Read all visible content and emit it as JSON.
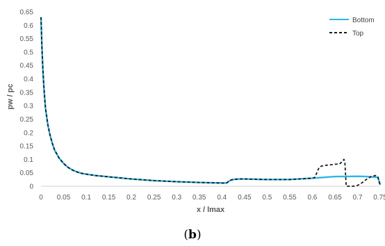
{
  "chart_data": {
    "type": "line",
    "xlabel": "x / lmax",
    "ylabel": "pw / pc",
    "xlim": [
      0,
      0.75
    ],
    "ylim": [
      0,
      0.65
    ],
    "x_ticks": [
      "0",
      "0.05",
      "0.1",
      "0.15",
      "0.2",
      "0.25",
      "0.3",
      "0.35",
      "0.4",
      "0.45",
      "0.5",
      "0.55",
      "0.6",
      "0.65",
      "0.7",
      "0.75"
    ],
    "y_ticks": [
      "0",
      "0.05",
      "0.1",
      "0.15",
      "0.2",
      "0.25",
      "0.3",
      "0.35",
      "0.4",
      "0.45",
      "0.5",
      "0.55",
      "0.6",
      "0.65"
    ],
    "grid": false,
    "legend_position": "top-right",
    "caption_open": "(",
    "caption_label": "b",
    "caption_close": ")",
    "series": [
      {
        "name": "Bottom",
        "color": "#2EB4E6",
        "style": "solid",
        "x": [
          0.0,
          0.002,
          0.004,
          0.006,
          0.008,
          0.01,
          0.015,
          0.02,
          0.025,
          0.03,
          0.04,
          0.05,
          0.06,
          0.07,
          0.08,
          0.09,
          0.1,
          0.12,
          0.15,
          0.2,
          0.25,
          0.3,
          0.35,
          0.4,
          0.41,
          0.415,
          0.42,
          0.425,
          0.43,
          0.44,
          0.45,
          0.5,
          0.55,
          0.6,
          0.65,
          0.7,
          0.72,
          0.74,
          0.745,
          0.75
        ],
        "y": [
          0.63,
          0.52,
          0.44,
          0.38,
          0.33,
          0.29,
          0.23,
          0.19,
          0.16,
          0.135,
          0.105,
          0.085,
          0.07,
          0.06,
          0.053,
          0.048,
          0.045,
          0.04,
          0.035,
          0.027,
          0.021,
          0.017,
          0.014,
          0.012,
          0.012,
          0.018,
          0.023,
          0.025,
          0.026,
          0.027,
          0.027,
          0.025,
          0.025,
          0.03,
          0.036,
          0.037,
          0.036,
          0.034,
          0.033,
          0.005
        ]
      },
      {
        "name": "Top",
        "color": "#1a1a1a",
        "style": "dashed",
        "x": [
          0.0,
          0.002,
          0.004,
          0.006,
          0.008,
          0.01,
          0.015,
          0.02,
          0.025,
          0.03,
          0.04,
          0.05,
          0.06,
          0.07,
          0.08,
          0.09,
          0.1,
          0.12,
          0.15,
          0.2,
          0.25,
          0.3,
          0.35,
          0.4,
          0.41,
          0.415,
          0.42,
          0.425,
          0.43,
          0.44,
          0.45,
          0.5,
          0.55,
          0.6,
          0.605,
          0.61,
          0.615,
          0.62,
          0.63,
          0.64,
          0.65,
          0.66,
          0.665,
          0.67,
          0.672,
          0.675,
          0.68,
          0.685,
          0.69,
          0.7,
          0.71,
          0.72,
          0.73,
          0.74,
          0.745,
          0.75
        ],
        "y": [
          0.63,
          0.52,
          0.44,
          0.38,
          0.33,
          0.29,
          0.23,
          0.19,
          0.16,
          0.135,
          0.105,
          0.085,
          0.07,
          0.06,
          0.053,
          0.048,
          0.045,
          0.04,
          0.035,
          0.027,
          0.021,
          0.017,
          0.014,
          0.012,
          0.012,
          0.018,
          0.023,
          0.025,
          0.026,
          0.027,
          0.027,
          0.025,
          0.025,
          0.03,
          0.032,
          0.05,
          0.07,
          0.075,
          0.078,
          0.08,
          0.082,
          0.083,
          0.09,
          0.1,
          0.09,
          0.0,
          0.0,
          0.0,
          0.0,
          0.003,
          0.013,
          0.026,
          0.036,
          0.04,
          0.035,
          0.005
        ]
      }
    ]
  }
}
